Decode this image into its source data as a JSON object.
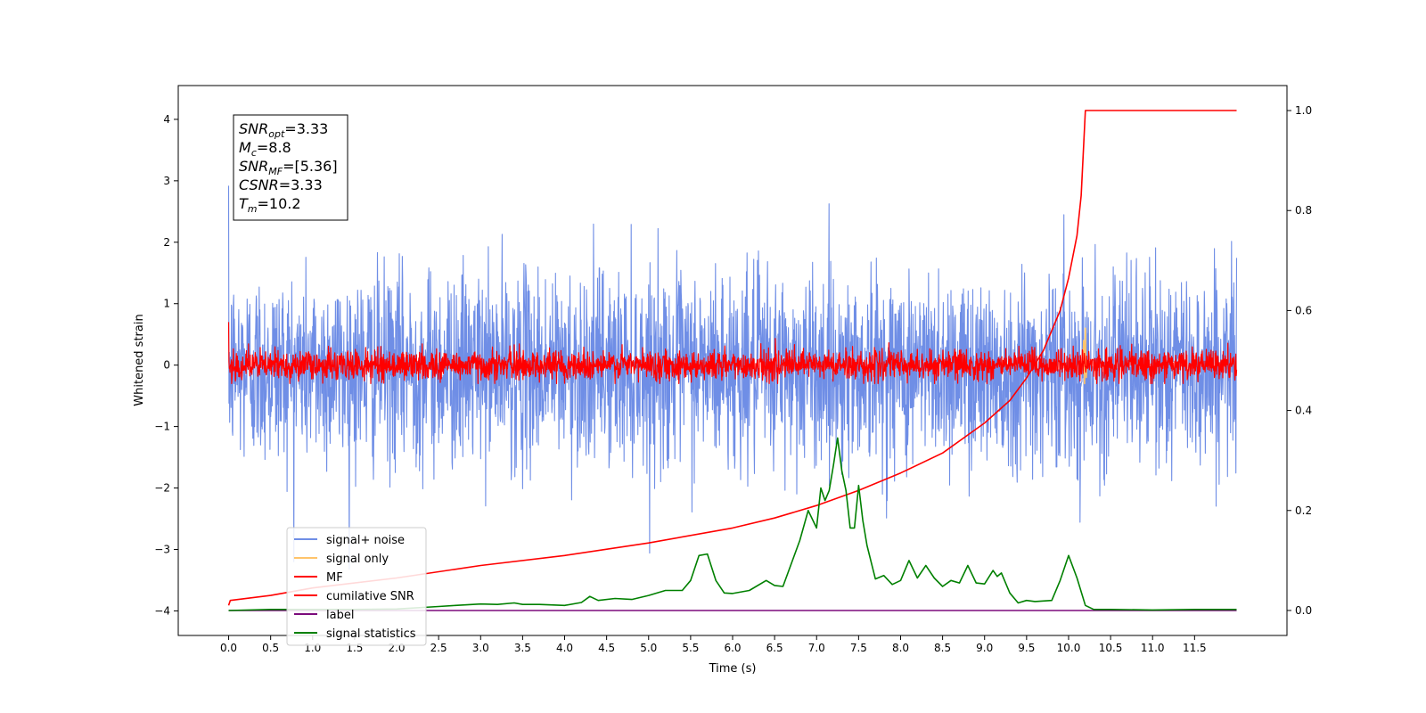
{
  "chart_data": {
    "type": "line",
    "xlabel": "Time (s)",
    "ylabel": "Whitened strain",
    "xlim": [
      -0.6,
      12.6
    ],
    "ylim": [
      -4.4,
      4.55
    ],
    "ylim_right": [
      -0.05,
      1.05
    ],
    "xticks": [
      0.0,
      0.5,
      1.0,
      1.5,
      2.0,
      2.5,
      3.0,
      3.5,
      4.0,
      4.5,
      5.0,
      5.5,
      6.0,
      6.5,
      7.0,
      7.5,
      8.0,
      8.5,
      9.0,
      9.5,
      10.0,
      10.5,
      11.0,
      11.5
    ],
    "xtick_labels": [
      "0.0",
      "0.5",
      "1.0",
      "1.5",
      "2.0",
      "2.5",
      "3.0",
      "3.5",
      "4.0",
      "4.5",
      "5.0",
      "5.5",
      "6.0",
      "6.5",
      "7.0",
      "7.5",
      "8.0",
      "8.5",
      "9.0",
      "9.5",
      "10.0",
      "10.5",
      "11.0",
      "11.5"
    ],
    "yticks_left": [
      -4,
      -3,
      -2,
      -1,
      0,
      1,
      2,
      3,
      4
    ],
    "ytick_labels_left": [
      "−4",
      "−3",
      "−2",
      "−1",
      "0",
      "1",
      "2",
      "3",
      "4"
    ],
    "yticks_right": [
      0.0,
      0.2,
      0.4,
      0.6,
      0.8,
      1.0
    ],
    "ytick_labels_right": [
      "0.0",
      "0.2",
      "0.4",
      "0.6",
      "0.8",
      "1.0"
    ],
    "legend_placement": "lower-left",
    "grid": false,
    "annotation": {
      "lines": [
        {
          "base": "SNR",
          "sub": "opt",
          "value": "=3.33"
        },
        {
          "base": "M",
          "sub": "c",
          "value": "=8.8"
        },
        {
          "base": "SNR",
          "sub": "MF",
          "value": "=[5.36]"
        },
        {
          "base": "CSNR",
          "sub": "",
          "value": "=3.33"
        },
        {
          "base": "T",
          "sub": "m",
          "value": "=10.2"
        }
      ]
    },
    "series": [
      {
        "name": "signal+ noise",
        "axis": "left",
        "color": "#6f8ee6",
        "kind": "noise",
        "x_range": [
          0.0,
          12.0
        ],
        "center": -0.05,
        "envelope": 1.3,
        "max": 4.17,
        "min": -4.0
      },
      {
        "name": "signal only",
        "axis": "left",
        "color": "#ffc46b",
        "kind": "spike",
        "x": [
          10.17,
          10.18,
          10.19,
          10.2,
          10.21,
          10.22
        ],
        "y": [
          0.0,
          0.4,
          -0.3,
          0.6,
          -0.2,
          0.0
        ]
      },
      {
        "name": "MF",
        "axis": "left",
        "color": "#ff0000",
        "kind": "noise",
        "x_range": [
          0.0,
          12.0
        ],
        "center": 0.0,
        "envelope": 0.2,
        "max": 1.0,
        "min": -0.3
      },
      {
        "name": "cumilative SNR",
        "axis": "right",
        "color": "#ff0000",
        "kind": "line",
        "x": [
          0.0,
          0.02,
          0.5,
          1.0,
          2.0,
          3.0,
          4.0,
          5.0,
          6.0,
          6.5,
          7.0,
          7.5,
          8.0,
          8.5,
          9.0,
          9.3,
          9.5,
          9.7,
          9.9,
          10.0,
          10.1,
          10.15,
          10.2,
          12.0
        ],
        "y": [
          0.01,
          0.02,
          0.03,
          0.045,
          0.065,
          0.09,
          0.11,
          0.135,
          0.165,
          0.185,
          0.21,
          0.24,
          0.275,
          0.315,
          0.375,
          0.42,
          0.465,
          0.52,
          0.6,
          0.665,
          0.75,
          0.83,
          1.0,
          1.0
        ]
      },
      {
        "name": "label",
        "axis": "right",
        "color": "#7b0a7b",
        "kind": "line",
        "x": [
          0.0,
          12.0
        ],
        "y": [
          0.0,
          0.0
        ]
      },
      {
        "name": "signal statistics",
        "axis": "right",
        "color": "#008000",
        "kind": "line",
        "x": [
          0.0,
          0.5,
          1.0,
          1.5,
          2.0,
          2.5,
          2.7,
          3.0,
          3.2,
          3.4,
          3.5,
          3.7,
          4.0,
          4.2,
          4.3,
          4.4,
          4.6,
          4.8,
          5.0,
          5.2,
          5.4,
          5.5,
          5.6,
          5.7,
          5.8,
          5.9,
          6.0,
          6.2,
          6.4,
          6.5,
          6.6,
          6.8,
          6.9,
          7.0,
          7.05,
          7.1,
          7.15,
          7.2,
          7.25,
          7.3,
          7.35,
          7.4,
          7.45,
          7.5,
          7.55,
          7.6,
          7.7,
          7.8,
          7.9,
          8.0,
          8.1,
          8.2,
          8.3,
          8.4,
          8.5,
          8.6,
          8.7,
          8.8,
          8.9,
          9.0,
          9.1,
          9.15,
          9.2,
          9.3,
          9.4,
          9.5,
          9.6,
          9.8,
          9.9,
          10.0,
          10.1,
          10.2,
          10.3,
          10.5,
          11.0,
          11.5,
          12.0
        ],
        "y": [
          0.0,
          0.002,
          0.002,
          0.002,
          0.003,
          0.008,
          0.01,
          0.013,
          0.012,
          0.015,
          0.012,
          0.012,
          0.01,
          0.016,
          0.028,
          0.02,
          0.024,
          0.022,
          0.03,
          0.04,
          0.04,
          0.06,
          0.11,
          0.113,
          0.06,
          0.035,
          0.034,
          0.04,
          0.06,
          0.05,
          0.048,
          0.14,
          0.2,
          0.165,
          0.245,
          0.22,
          0.24,
          0.29,
          0.345,
          0.28,
          0.24,
          0.165,
          0.165,
          0.25,
          0.18,
          0.13,
          0.063,
          0.07,
          0.052,
          0.06,
          0.1,
          0.065,
          0.09,
          0.065,
          0.048,
          0.06,
          0.055,
          0.09,
          0.055,
          0.053,
          0.08,
          0.068,
          0.075,
          0.035,
          0.015,
          0.02,
          0.018,
          0.02,
          0.06,
          0.11,
          0.065,
          0.01,
          0.002,
          0.002,
          0.001,
          0.002,
          0.002
        ]
      }
    ]
  }
}
